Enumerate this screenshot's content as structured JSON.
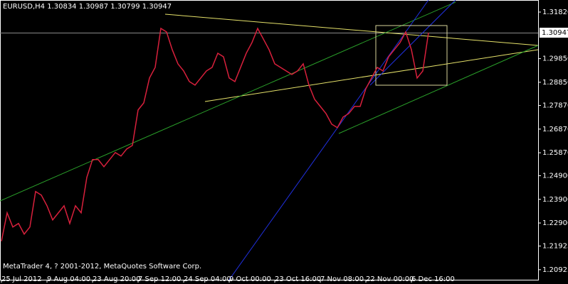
{
  "chart_data": {
    "type": "line",
    "title": "EURUSD,H4  1.30834 1.30987 1.30799 1.30947",
    "footer": "MetaTrader 4, ? 2001-2012, MetaQuotes Software Corp.",
    "categories": [
      "25 Jul 2012",
      null,
      null,
      null,
      null,
      null,
      null,
      null,
      "9 Aug 04:00",
      null,
      null,
      null,
      null,
      null,
      null,
      null,
      "23 Aug 20:00",
      null,
      null,
      null,
      null,
      null,
      null,
      null,
      "7 Sep 12:00",
      null,
      null,
      null,
      null,
      null,
      null,
      null,
      "24 Sep 04:00",
      null,
      null,
      null,
      null,
      null,
      null,
      null,
      "9 Oct 00:00",
      null,
      null,
      null,
      null,
      null,
      null,
      null,
      "23 Oct 16:00",
      null,
      null,
      null,
      null,
      null,
      null,
      null,
      "7 Nov 08:00",
      null,
      null,
      null,
      null,
      null,
      null,
      null,
      "22 Nov 00:00",
      null,
      null,
      null,
      null,
      null,
      null,
      null,
      "6 Dec 16:00",
      null,
      null,
      null
    ],
    "series": [
      {
        "name": "EURUSD,H4",
        "color": "#d8203c",
        "values": [
          1.2213,
          1.2333,
          1.2273,
          1.2288,
          1.2243,
          1.2273,
          1.2423,
          1.2408,
          1.2363,
          1.2303,
          1.2333,
          1.2363,
          1.2288,
          1.2363,
          1.2333,
          1.2483,
          1.2558,
          1.2558,
          1.2528,
          1.2558,
          1.2588,
          1.2573,
          1.2603,
          1.2618,
          1.2768,
          1.2798,
          1.2903,
          1.2948,
          1.3113,
          1.3098,
          1.3023,
          1.2963,
          1.2933,
          1.2888,
          1.2873,
          1.2903,
          1.2933,
          1.2948,
          1.3008,
          1.2993,
          1.2903,
          1.2888,
          1.2948,
          1.3008,
          1.3053,
          1.3113,
          1.3068,
          1.3023,
          1.2963,
          1.2948,
          1.2933,
          1.2918,
          1.2933,
          1.2963,
          1.2873,
          1.2813,
          1.2783,
          1.2753,
          1.2708,
          1.2693,
          1.2738,
          1.2753,
          1.2783,
          1.2783,
          1.2858,
          1.2903,
          1.2948,
          1.2933,
          1.2993,
          1.3023,
          1.3053,
          1.3098,
          1.3023,
          1.2903,
          1.2933,
          1.30947
        ]
      }
    ],
    "current_price": 1.30947,
    "ylim": [
      1.205,
      1.3233
    ],
    "yticks": [
      {
        "value": 1.3182,
        "label": "1.31820"
      },
      {
        "value": 1.2985,
        "label": "1.29850"
      },
      {
        "value": 1.2885,
        "label": "1.28850"
      },
      {
        "value": 1.2787,
        "label": "1.27870"
      },
      {
        "value": 1.2687,
        "label": "1.26870"
      },
      {
        "value": 1.2587,
        "label": "1.25870"
      },
      {
        "value": 1.249,
        "label": "1.24900"
      },
      {
        "value": 1.239,
        "label": "1.23900"
      },
      {
        "value": 1.229,
        "label": "1.22900"
      },
      {
        "value": 1.21925,
        "label": "1.21925"
      },
      {
        "value": 1.20925,
        "label": "1.20925"
      }
    ],
    "grid": false
  }
}
